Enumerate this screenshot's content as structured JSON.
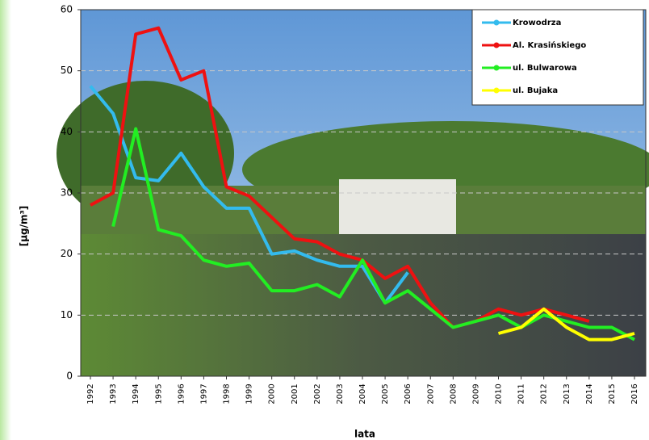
{
  "chart_data": {
    "type": "line",
    "y_label": "[µg/m³]",
    "x_label": "lata",
    "categories": [
      "1992",
      "1993",
      "1994",
      "1995",
      "1996",
      "1997",
      "1998",
      "1999",
      "2000",
      "2001",
      "2002",
      "2003",
      "2004",
      "2005",
      "2006",
      "2007",
      "2008",
      "2009",
      "2010",
      "2011",
      "2012",
      "2013",
      "2014",
      "2015",
      "2016"
    ],
    "series": [
      {
        "name": "Krowodrza",
        "color": "#33bbee",
        "values": [
          47.5,
          43,
          32.5,
          32,
          36.5,
          31,
          27.5,
          27.5,
          20,
          20.5,
          19,
          18,
          18,
          12,
          17,
          null,
          null,
          null,
          null,
          null,
          null,
          null,
          null,
          null,
          null
        ]
      },
      {
        "name": "Al. Krasińskiego",
        "color": "#ee1111",
        "values": [
          28,
          30,
          56,
          57,
          48.5,
          50,
          31,
          29.5,
          26,
          22.5,
          22,
          20,
          19,
          16,
          18,
          12,
          8,
          9,
          11,
          10,
          11,
          10,
          9,
          null,
          null
        ]
      },
      {
        "name": "ul. Bulwarowa",
        "color": "#22ee22",
        "values": [
          null,
          24.5,
          40.5,
          24,
          23,
          19,
          18,
          18.5,
          14,
          14,
          15,
          13,
          19,
          12,
          14,
          11,
          8,
          9,
          10,
          8,
          10,
          9,
          8,
          8,
          6
        ]
      },
      {
        "name": "ul. Bujaka",
        "color": "#ffff00",
        "values": [
          null,
          null,
          null,
          null,
          null,
          null,
          null,
          null,
          null,
          null,
          null,
          null,
          null,
          null,
          null,
          null,
          null,
          null,
          7,
          8,
          11,
          8,
          6,
          6,
          7
        ]
      }
    ],
    "ylim": [
      0,
      60
    ],
    "yticks": [
      0,
      10,
      20,
      30,
      40,
      50,
      60
    ],
    "grid": true,
    "legend": "top-right"
  }
}
